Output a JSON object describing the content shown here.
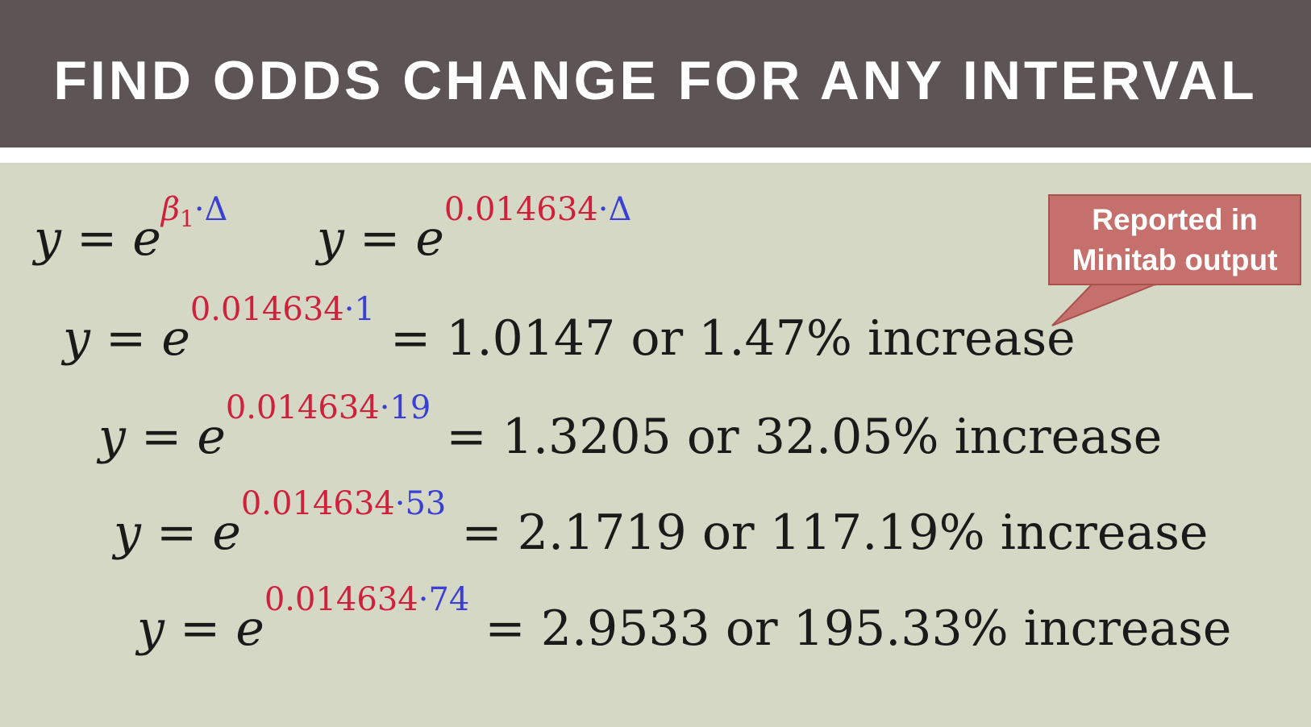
{
  "header": {
    "title": "FIND ODDS CHANGE FOR ANY INTERVAL"
  },
  "callout": {
    "line1": "Reported in",
    "line2": "Minitab output"
  },
  "formulas": {
    "general": {
      "lhs": "y",
      "equals": "=",
      "base": "e",
      "beta": "β",
      "beta_sub": "1",
      "dot": "·",
      "delta": "Δ"
    },
    "coef": {
      "lhs": "y",
      "equals": "=",
      "base": "e",
      "coefficient": "0.014634",
      "dot": "·",
      "delta": "Δ"
    }
  },
  "equations": [
    {
      "lhs": "y",
      "equals": "=",
      "base": "e",
      "coefficient": "0.014634",
      "dot": "·",
      "interval": "1",
      "result_equals": "=",
      "result": "1.0147",
      "or": "or",
      "percent": "1.47%",
      "word": "increase"
    },
    {
      "lhs": "y",
      "equals": "=",
      "base": "e",
      "coefficient": "0.014634",
      "dot": "·",
      "interval": "19",
      "result_equals": "=",
      "result": "1.3205",
      "or": "or",
      "percent": "32.05%",
      "word": "increase"
    },
    {
      "lhs": "y",
      "equals": "=",
      "base": "e",
      "coefficient": "0.014634",
      "dot": "·",
      "interval": "53",
      "result_equals": "=",
      "result": "2.1719",
      "or": "or",
      "percent": "117.19%",
      "word": "increase"
    },
    {
      "lhs": "y",
      "equals": "=",
      "base": "e",
      "coefficient": "0.014634",
      "dot": "·",
      "interval": "74",
      "result_equals": "=",
      "result": "2.9533",
      "or": "or",
      "percent": "195.33%",
      "word": "increase"
    }
  ],
  "colors": {
    "header_bg": "#5c5455",
    "content_bg": "#d4d8c4",
    "coefficient": "#d0213c",
    "interval": "#3a3fd6",
    "callout_bg": "#c5706c"
  }
}
